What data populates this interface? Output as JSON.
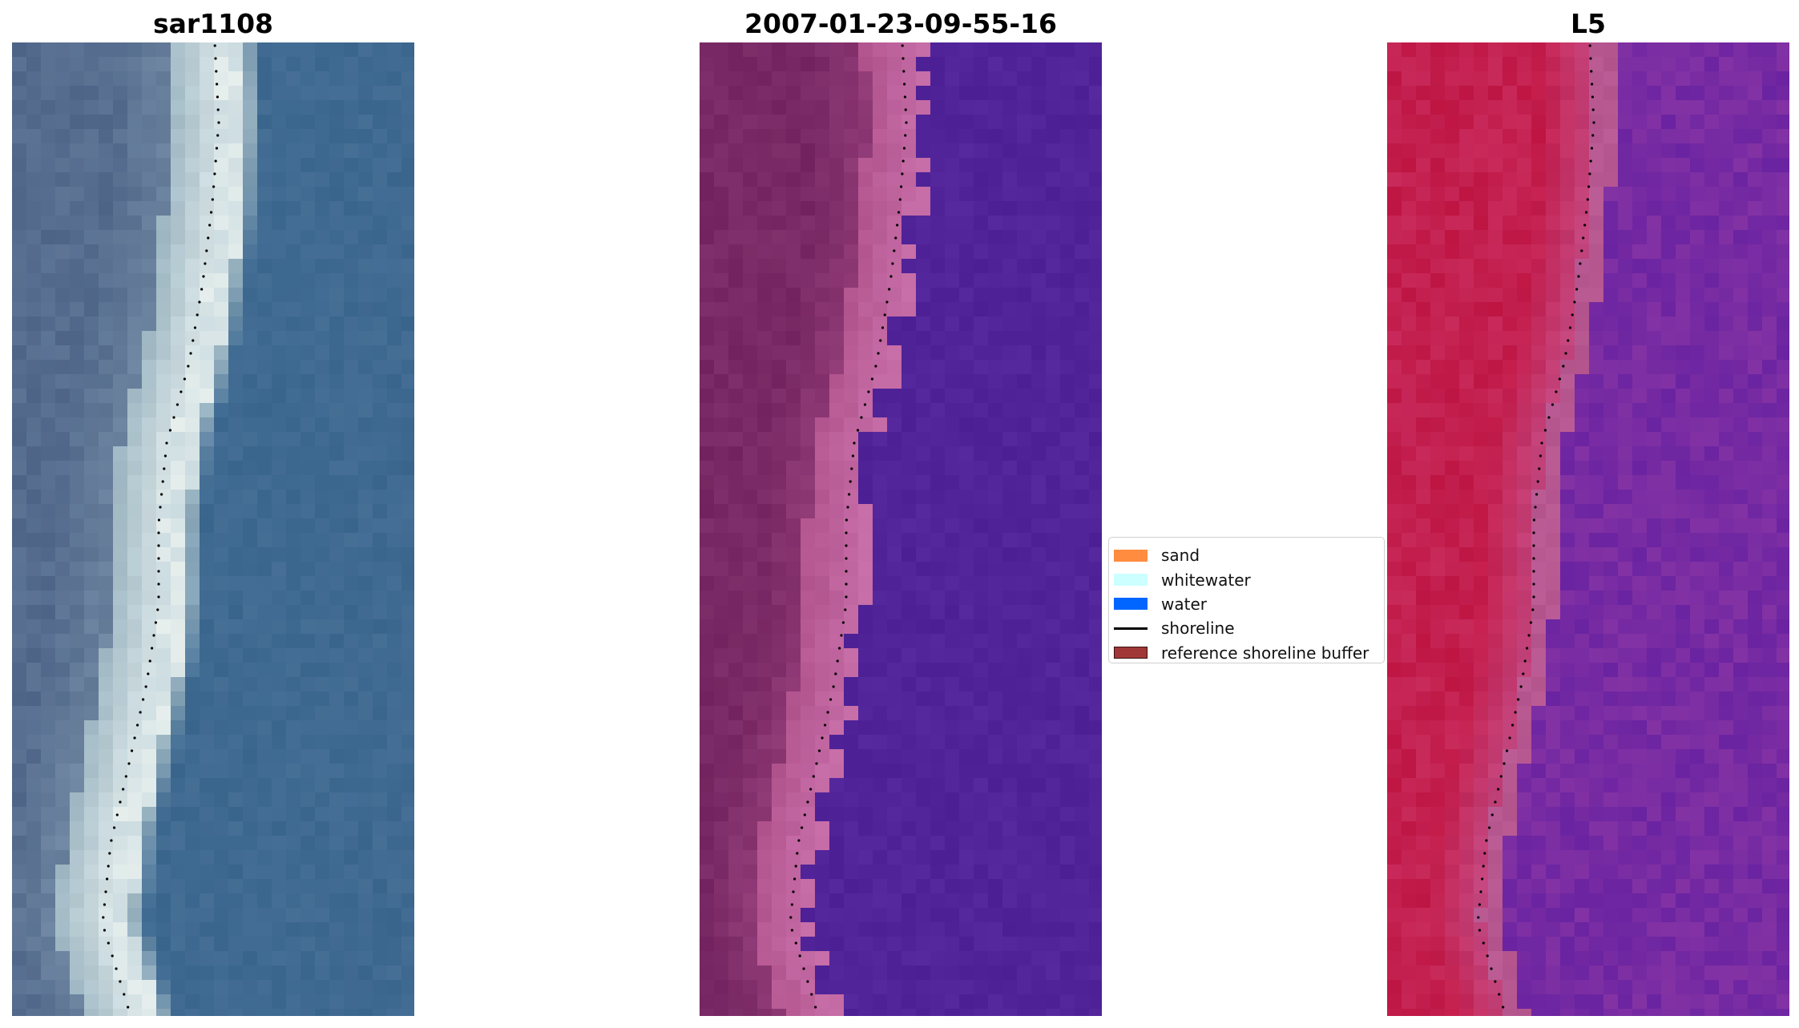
{
  "panels": [
    {
      "title": "sar1108",
      "kind": "rgb",
      "palette": {
        "land": "#52698c",
        "sand": "#9fb8c4",
        "surf": "#ecf4f2",
        "sea": "#3e6a92"
      }
    },
    {
      "title": "2007-01-23-09-55-16",
      "kind": "classified",
      "palette": {
        "land": "#772864",
        "sand": "#b3558f",
        "buffer": "#c46aa4",
        "sea": "#51249a"
      }
    },
    {
      "title": "L5",
      "kind": "mndwi",
      "palette": {
        "land": "#c31a48",
        "sand": "#c3467e",
        "buffer": "#b0649e",
        "sea": "#6f28a6"
      }
    }
  ],
  "legend": {
    "items": [
      {
        "label": "sand",
        "type": "patch",
        "color": "#ff8c3f"
      },
      {
        "label": "whitewater",
        "type": "patch",
        "color": "#ccffff"
      },
      {
        "label": "water",
        "type": "patch",
        "color": "#0066ff"
      },
      {
        "label": "shoreline",
        "type": "line",
        "color": "#000000"
      },
      {
        "label": "reference shoreline buffer",
        "type": "patch",
        "color": "#a13838",
        "edge": "#3a1010"
      }
    ]
  },
  "shoreline_style": {
    "color": "#000000",
    "linestyle": "dotted"
  }
}
